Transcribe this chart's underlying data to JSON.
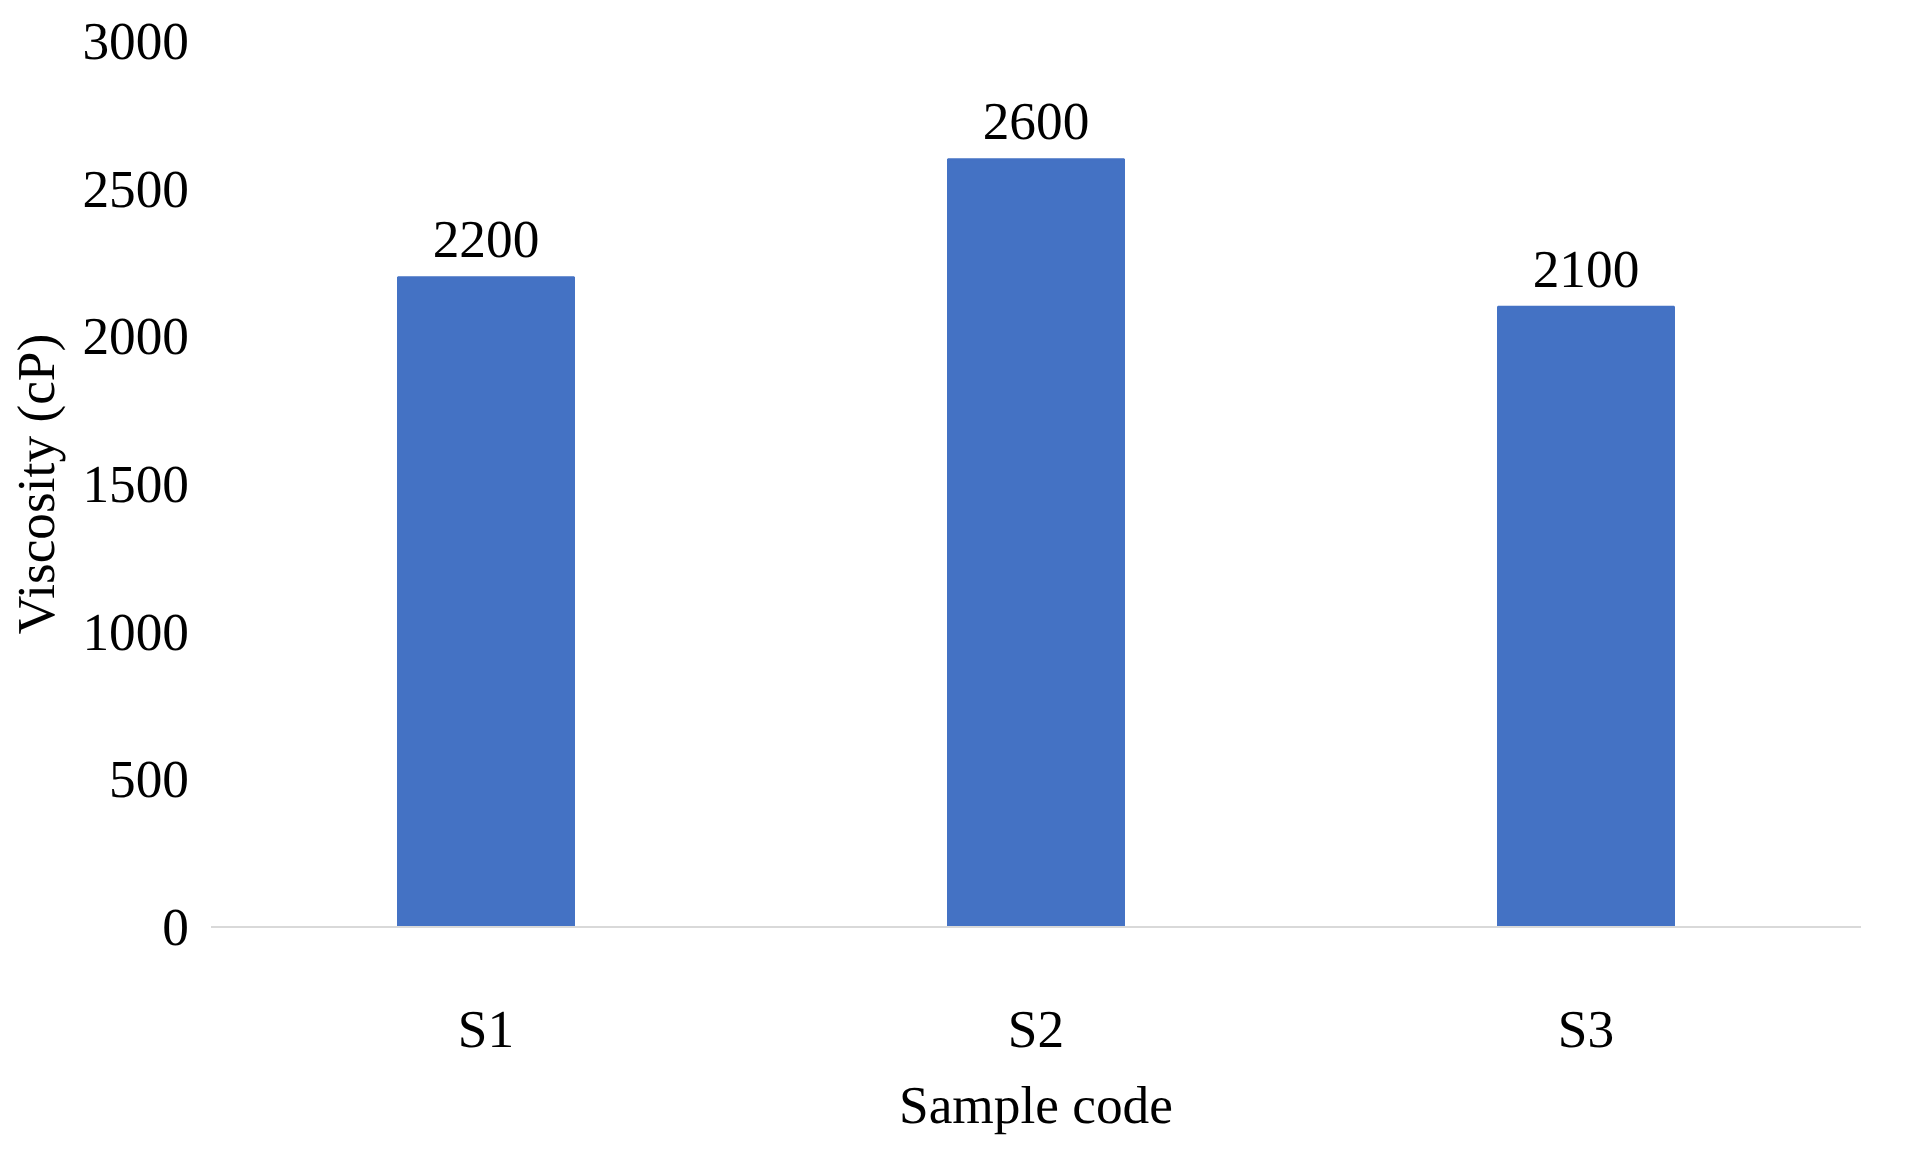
{
  "chart_data": {
    "type": "bar",
    "xlabel": "Sample code",
    "ylabel": "Viscosity (cP)",
    "categories": [
      "S1",
      "S2",
      "S3"
    ],
    "series": [
      {
        "color": "#4472c4",
        "values": [
          2200,
          2600,
          2100
        ]
      }
    ],
    "ylim": [
      0,
      3000
    ],
    "yticks": [
      0,
      500,
      1000,
      1500,
      2000,
      2500,
      3000
    ],
    "grid": false,
    "data_labels": true
  }
}
